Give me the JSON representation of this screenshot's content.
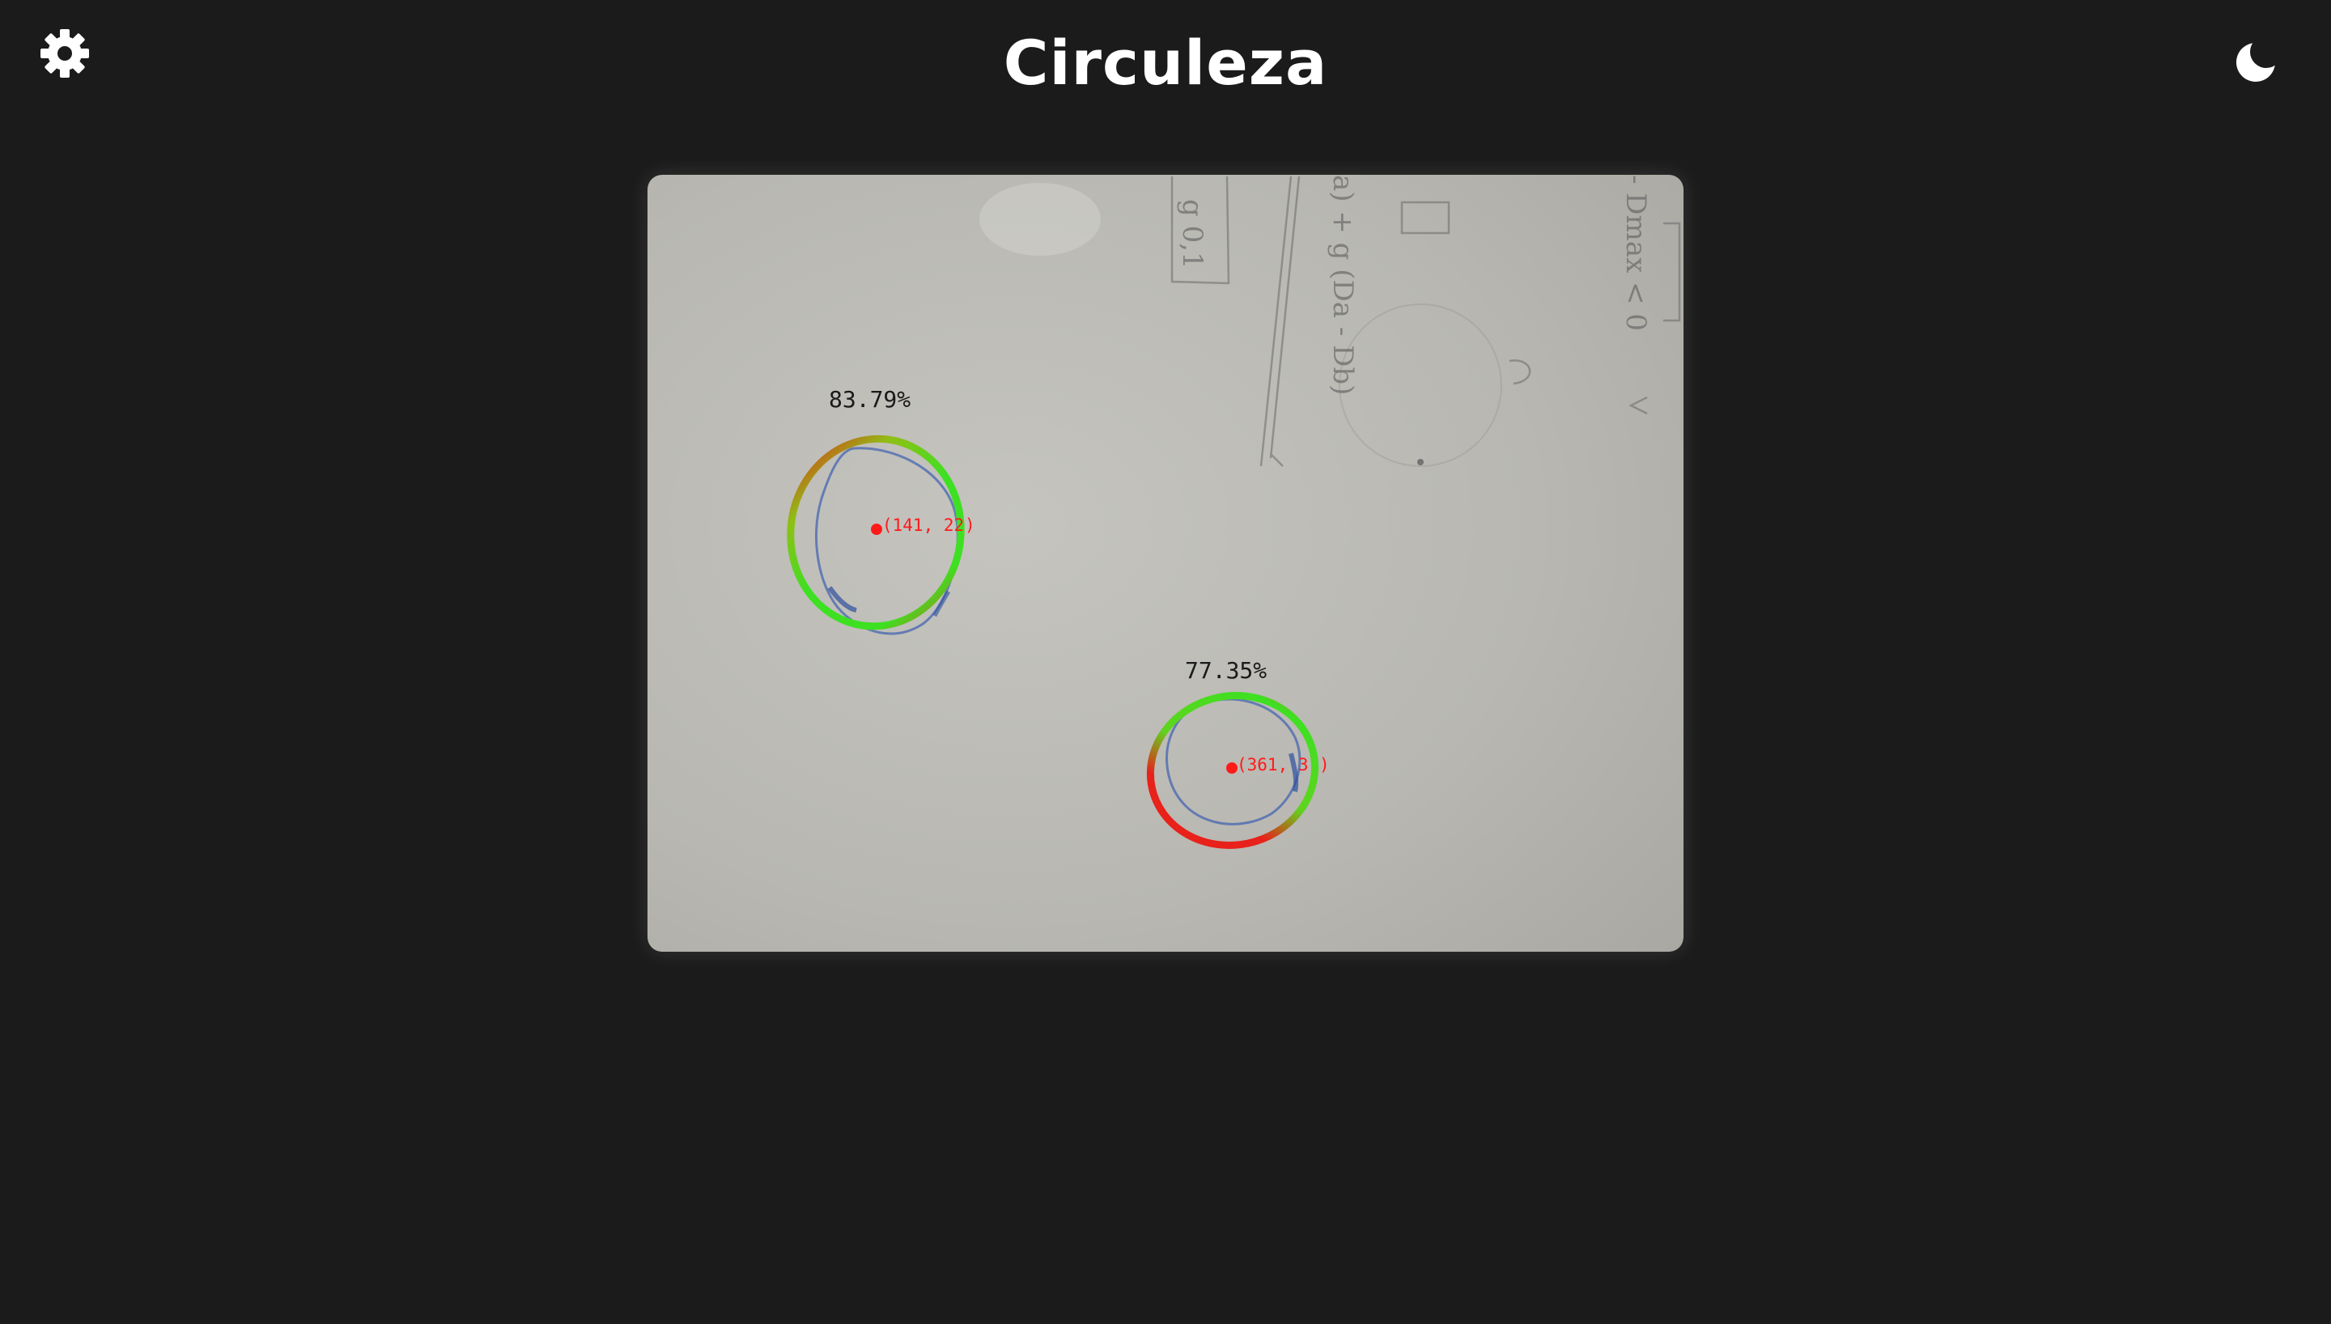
{
  "header": {
    "title": "Circuleza",
    "settings_icon": "gear-icon",
    "theme_icon": "moon-icon"
  },
  "camera_feed": {
    "circles": [
      {
        "score_label": "83.79%",
        "center_label": "(141, 22 )",
        "center_visible_text": "(141, 22",
        "center_tail": ")"
      },
      {
        "score_label": "77.35%",
        "center_label": "(361, 36 )",
        "center_visible_text": "(361, 3",
        "center_tail": ")"
      }
    ],
    "handwriting": {
      "boxed_value": "g 0,1",
      "formula": "a) + g (Da - Db)",
      "side_note": "- Dmax  < 0"
    }
  },
  "colors": {
    "background": "#1b1b1b",
    "title": "#ffffff",
    "paper": "#b9b7b1",
    "fit_good": "#3ee022",
    "fit_bad": "#e8211a",
    "marker": "#ff1a1a",
    "ink": "#3d5fb0"
  }
}
